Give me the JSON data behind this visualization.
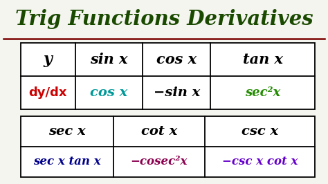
{
  "title": "Trig Functions Derivatives",
  "title_color": "#1a4a00",
  "title_fontsize": 21,
  "bg_color": "#f5f5f0",
  "underline_color": "#7a0000",
  "table1": {
    "headers": [
      "y",
      "sin x",
      "cos x",
      "tan x"
    ],
    "header_color": "#000000",
    "row_label": "dy/dx",
    "row_label_color": "#cc0000",
    "row_values": [
      "cos x",
      "−sin x",
      "sec²x"
    ],
    "row_colors": [
      "#009999",
      "#000000",
      "#228b00"
    ]
  },
  "table2": {
    "headers": [
      "sec x",
      "cot x",
      "csc x"
    ],
    "header_color": "#000000",
    "row_values": [
      "sec x tan x",
      "−cosec²x",
      "−csc x cot x"
    ],
    "row_colors": [
      "#00008b",
      "#8b004f",
      "#6600cc"
    ]
  }
}
